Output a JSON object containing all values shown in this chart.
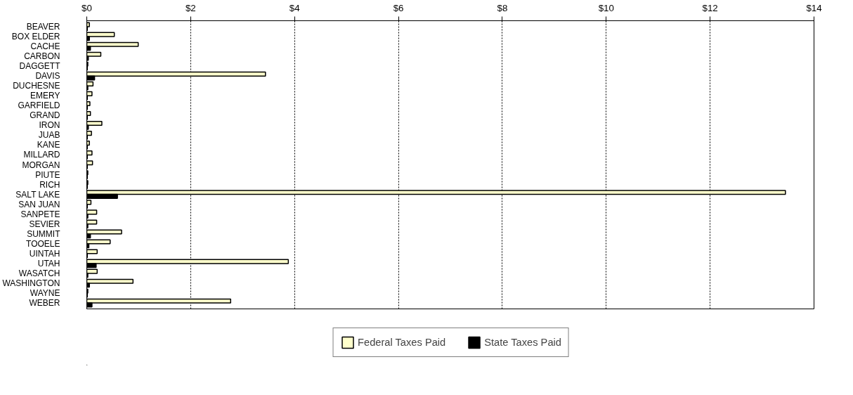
{
  "chart_data": {
    "type": "bar",
    "orientation": "horizontal",
    "categories": [
      "BEAVER",
      "BOX ELDER",
      "CACHE",
      "CARBON",
      "DAGGETT",
      "DAVIS",
      "DUCHESNE",
      "EMERY",
      "GARFIELD",
      "GRAND",
      "IRON",
      "JUAB",
      "KANE",
      "MILLARD",
      "MORGAN",
      "PIUTE",
      "RICH",
      "SALT LAKE",
      "SAN JUAN",
      "SANPETE",
      "SEVIER",
      "SUMMIT",
      "TOOELE",
      "UINTAH",
      "UTAH",
      "WASATCH",
      "WASHINGTON",
      "WAYNE",
      "WEBER"
    ],
    "series": [
      {
        "name": "Federal Taxes Paid",
        "color": "#ffffcc",
        "values": [
          0.05,
          0.53,
          0.99,
          0.27,
          0.02,
          3.44,
          0.12,
          0.1,
          0.06,
          0.07,
          0.29,
          0.09,
          0.05,
          0.1,
          0.11,
          0.02,
          0.02,
          13.45,
          0.08,
          0.19,
          0.19,
          0.67,
          0.45,
          0.2,
          3.88,
          0.2,
          0.89,
          0.02,
          2.77
        ]
      },
      {
        "name": "State Taxes Paid",
        "color": "#000000",
        "values": [
          0.01,
          0.05,
          0.07,
          0.03,
          0.01,
          0.15,
          0.02,
          0.01,
          0.01,
          0.01,
          0.03,
          0.01,
          0.01,
          0.01,
          0.01,
          0.01,
          0.01,
          0.59,
          0.01,
          0.02,
          0.02,
          0.07,
          0.04,
          0.01,
          0.18,
          0.02,
          0.05,
          0.01,
          0.1
        ]
      }
    ],
    "xlim": [
      0,
      14
    ],
    "xticks": [
      {
        "value": 0,
        "label": "$0"
      },
      {
        "value": 2,
        "label": "$2"
      },
      {
        "value": 4,
        "label": "$4"
      },
      {
        "value": 6,
        "label": "$6"
      },
      {
        "value": 8,
        "label": "$8"
      },
      {
        "value": 10,
        "label": "$10"
      },
      {
        "value": 12,
        "label": "$12"
      },
      {
        "value": 14,
        "label": "$14"
      }
    ],
    "grid": "x",
    "legend": "bottom"
  }
}
